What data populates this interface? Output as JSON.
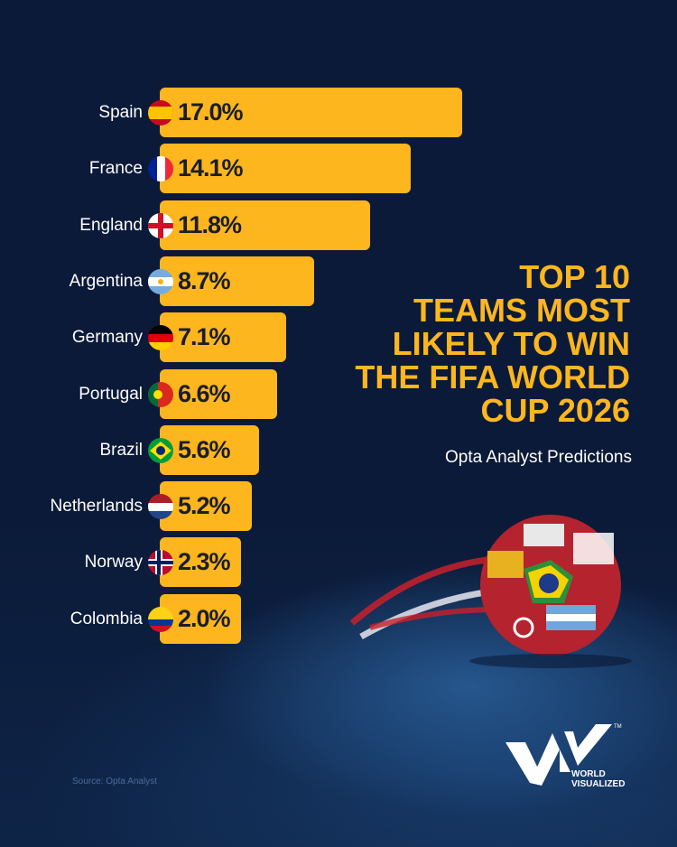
{
  "header": {
    "title_lines": [
      "TOP 10",
      "TEAMS MOST",
      "LIKELY TO WIN",
      "THE FIFA WORLD",
      "CUP 2026"
    ],
    "subtitle": "Opta Analyst Predictions"
  },
  "footer": {
    "source": "Source: Opta Analyst",
    "logo_line1": "WORLD",
    "logo_line2": "VISUALIZED",
    "trademark": "TM"
  },
  "colors": {
    "bar": "#fdb61d",
    "background": "#0c1a3a",
    "title": "#fdb61d",
    "value_text": "#1b1d2a"
  },
  "bars": [
    {
      "team": "Spain",
      "value_label": "17.0%",
      "flag": "spain-flag"
    },
    {
      "team": "France",
      "value_label": "14.1%",
      "flag": "france-flag"
    },
    {
      "team": "England",
      "value_label": "11.8%",
      "flag": "england-flag"
    },
    {
      "team": "Argentina",
      "value_label": "8.7%",
      "flag": "argentina-flag"
    },
    {
      "team": "Germany",
      "value_label": "7.1%",
      "flag": "germany-flag"
    },
    {
      "team": "Portugal",
      "value_label": "6.6%",
      "flag": "portugal-flag"
    },
    {
      "team": "Brazil",
      "value_label": "5.6%",
      "flag": "brazil-flag"
    },
    {
      "team": "Netherlands",
      "value_label": "5.2%",
      "flag": "netherlands-flag"
    },
    {
      "team": "Norway",
      "value_label": "2.3%",
      "flag": "norway-flag"
    },
    {
      "team": "Colombia",
      "value_label": "2.0%",
      "flag": "colombia-flag"
    }
  ],
  "chart_data": {
    "type": "bar",
    "orientation": "horizontal",
    "title": "TOP 10 TEAMS MOST LIKELY TO WIN THE FIFA WORLD CUP 2026",
    "subtitle": "Opta Analyst Predictions",
    "categories": [
      "Spain",
      "France",
      "England",
      "Argentina",
      "Germany",
      "Portugal",
      "Brazil",
      "Netherlands",
      "Norway",
      "Colombia"
    ],
    "values": [
      17.0,
      14.1,
      11.8,
      8.7,
      7.1,
      6.6,
      5.6,
      5.2,
      2.3,
      2.0
    ],
    "unit": "%",
    "xlabel": "",
    "ylabel": "",
    "grid": false,
    "legend": null,
    "source": "Source: Opta Analyst"
  }
}
